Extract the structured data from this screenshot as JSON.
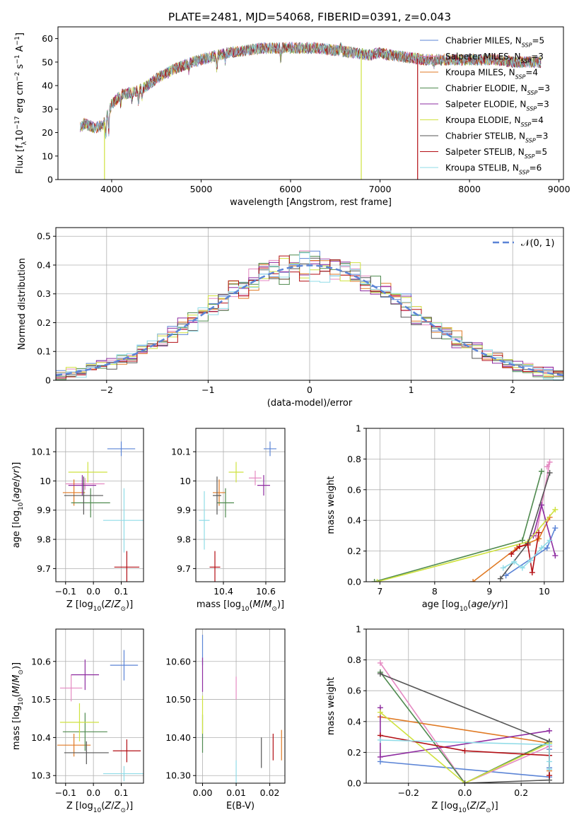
{
  "figure_title": "PLATE=2481, MJD=54068, FIBERID=0391, z=0.043",
  "colors": {
    "Chabrier MILES": "#5b84d6",
    "Salpeter MILES": "#e58ac2",
    "Kroupa MILES": "#e07a24",
    "Chabrier ELODIE": "#4f8a4f",
    "Salpeter ELODIE": "#8e2ca0",
    "Kroupa ELODIE": "#cfe23f",
    "Chabrier STELIB": "#555555",
    "Salpeter STELIB": "#b30e14",
    "Kroupa STELIB": "#8fdbe7"
  },
  "chart_data": [
    {
      "id": "spectrum",
      "type": "line",
      "title": "PLATE=2481, MJD=54068, FIBERID=0391, z=0.043",
      "xlabel": "wavelength [Angstrom, rest frame]",
      "ylabel": "Flux [f_λ10^-17 erg cm^-2 s^-1 A^-1]",
      "xlim": [
        3400,
        9050
      ],
      "ylim": [
        0,
        65
      ],
      "xticks": [
        4000,
        5000,
        6000,
        7000,
        8000,
        9000
      ],
      "yticks": [
        0,
        10,
        20,
        30,
        40,
        50,
        60
      ],
      "grid": false,
      "legend_position": "top-right",
      "legend": [
        {
          "label": "Chabrier MILES, N_SSP=5",
          "key": "Chabrier MILES"
        },
        {
          "label": "Salpeter MILES, N_SSP=3",
          "key": "Salpeter MILES"
        },
        {
          "label": "Kroupa MILES, N_SSP=4",
          "key": "Kroupa MILES"
        },
        {
          "label": "Chabrier ELODIE, N_SSP=3",
          "key": "Chabrier ELODIE"
        },
        {
          "label": "Salpeter ELODIE, N_SSP=3",
          "key": "Salpeter ELODIE"
        },
        {
          "label": "Kroupa ELODIE, N_SSP=4",
          "key": "Kroupa ELODIE"
        },
        {
          "label": "Chabrier STELIB, N_SSP=3",
          "key": "Chabrier STELIB"
        },
        {
          "label": "Salpeter STELIB, N_SSP=5",
          "key": "Salpeter STELIB"
        },
        {
          "label": "Kroupa STELIB, N_SSP=6",
          "key": "Kroupa STELIB"
        }
      ],
      "continuum": {
        "x": [
          3650,
          3700,
          3800,
          3900,
          3950,
          4000,
          4100,
          4200,
          4300,
          4400,
          4500,
          4700,
          4900,
          5100,
          5300,
          5500,
          5700,
          5900,
          6100,
          6300,
          6500,
          6700,
          6900,
          7000,
          7100,
          7300,
          7500,
          7700,
          7900,
          8100,
          8300,
          8500,
          8700,
          8800
        ],
        "y": [
          22,
          24,
          22,
          23,
          27,
          32,
          36,
          37,
          38,
          40,
          43,
          47,
          50,
          52,
          54,
          55,
          56,
          56,
          56,
          56,
          55,
          54,
          53,
          54,
          53,
          52,
          51,
          51,
          51,
          51,
          51,
          50,
          50,
          50
        ]
      },
      "dropouts": [
        {
          "key": "Kroupa ELODIE",
          "x": 3920,
          "y_low": 0
        },
        {
          "key": "Kroupa ELODIE",
          "x": 6790,
          "y_low": 0
        },
        {
          "key": "Salpeter STELIB",
          "x": 7420,
          "y_low": 0
        }
      ]
    },
    {
      "id": "residuals",
      "type": "step",
      "xlabel": "(data-model)/error",
      "ylabel": "Normed distribution",
      "xlim": [
        -2.5,
        2.5
      ],
      "ylim": [
        0,
        0.53
      ],
      "xticks": [
        -2,
        -1,
        0,
        1,
        2
      ],
      "yticks": [
        0.0,
        0.1,
        0.2,
        0.3,
        0.4,
        0.5
      ],
      "grid": true,
      "legend_position": "top-right",
      "reference_label": "𝒩(0, 1)",
      "bin_width": 0.1,
      "series": [
        {
          "key": "Chabrier MILES",
          "offsets": [
            0.01,
            -0.02,
            0.03,
            0.0,
            -0.01,
            0.02
          ]
        },
        {
          "key": "Salpeter MILES",
          "offsets": [
            0.0,
            0.03,
            -0.02,
            0.01,
            0.02,
            -0.01
          ]
        },
        {
          "key": "Kroupa MILES",
          "offsets": [
            -0.02,
            0.01,
            0.0,
            0.03,
            -0.02,
            0.01
          ]
        },
        {
          "key": "Chabrier ELODIE",
          "offsets": [
            0.02,
            0.0,
            -0.03,
            0.02,
            0.01,
            -0.02
          ]
        },
        {
          "key": "Salpeter ELODIE",
          "offsets": [
            -0.01,
            0.02,
            0.01,
            -0.02,
            0.03,
            0.0
          ]
        },
        {
          "key": "Kroupa ELODIE",
          "offsets": [
            0.03,
            -0.01,
            0.02,
            -0.01,
            0.0,
            0.02
          ]
        },
        {
          "key": "Chabrier STELIB",
          "offsets": [
            0.0,
            -0.03,
            0.01,
            0.02,
            -0.01,
            0.03
          ]
        },
        {
          "key": "Salpeter STELIB",
          "offsets": [
            -0.02,
            0.02,
            -0.01,
            0.0,
            0.02,
            -0.02
          ]
        },
        {
          "key": "Kroupa STELIB",
          "offsets": [
            0.01,
            0.0,
            0.02,
            -0.03,
            0.01,
            0.01
          ]
        }
      ]
    },
    {
      "id": "z-vs-age",
      "type": "errorbar",
      "xlabel": "Z [log10(Z/Z⊙)]",
      "ylabel": "age  [log10(age/yr)]",
      "xlim": [
        -0.135,
        0.18
      ],
      "ylim": [
        9.655,
        10.18
      ],
      "xticks": [
        -0.1,
        0.0,
        0.1
      ],
      "yticks": [
        9.7,
        9.8,
        9.9,
        10.0,
        10.1
      ],
      "grid": true,
      "points": [
        {
          "key": "Chabrier MILES",
          "x": 0.1,
          "y": 10.11,
          "xerr": 0.05,
          "yerr": 0.025
        },
        {
          "key": "Salpeter MILES",
          "x": -0.03,
          "y": 9.99,
          "xerr": 0.07,
          "yerr": 0.02
        },
        {
          "key": "Kroupa MILES",
          "x": -0.07,
          "y": 9.96,
          "xerr": 0.04,
          "yerr": 0.045
        },
        {
          "key": "Chabrier ELODIE",
          "x": -0.01,
          "y": 9.925,
          "xerr": 0.07,
          "yerr": 0.05
        },
        {
          "key": "Salpeter ELODIE",
          "x": -0.04,
          "y": 9.985,
          "xerr": 0.05,
          "yerr": 0.035
        },
        {
          "key": "Kroupa ELODIE",
          "x": -0.02,
          "y": 10.03,
          "xerr": 0.07,
          "yerr": 0.035
        },
        {
          "key": "Chabrier STELIB",
          "x": -0.035,
          "y": 9.95,
          "xerr": 0.07,
          "yerr": 0.065
        },
        {
          "key": "Salpeter STELIB",
          "x": 0.12,
          "y": 9.705,
          "xerr": 0.045,
          "yerr": 0.055
        },
        {
          "key": "Kroupa STELIB",
          "x": 0.11,
          "y": 9.865,
          "xerr": 0.075,
          "yerr": 0.11
        }
      ]
    },
    {
      "id": "mass-vs-age",
      "type": "errorbar",
      "xlabel": "mass [log10(M/M⊙)]",
      "ylabel": "",
      "xlim": [
        10.27,
        10.69
      ],
      "ylim": [
        9.655,
        10.18
      ],
      "xticks": [
        10.4,
        10.6
      ],
      "yticks": [
        9.7,
        9.8,
        9.9,
        10.0,
        10.1
      ],
      "grid": true,
      "points": [
        {
          "key": "Chabrier MILES",
          "x": 10.62,
          "y": 10.11,
          "xerr": 0.03,
          "yerr": 0.025
        },
        {
          "key": "Salpeter MILES",
          "x": 10.55,
          "y": 10.01,
          "xerr": 0.03,
          "yerr": 0.025
        },
        {
          "key": "Kroupa MILES",
          "x": 10.38,
          "y": 9.96,
          "xerr": 0.03,
          "yerr": 0.045
        },
        {
          "key": "Chabrier ELODIE",
          "x": 10.41,
          "y": 9.925,
          "xerr": 0.04,
          "yerr": 0.05
        },
        {
          "key": "Salpeter ELODIE",
          "x": 10.59,
          "y": 9.985,
          "xerr": 0.03,
          "yerr": 0.035
        },
        {
          "key": "Kroupa ELODIE",
          "x": 10.46,
          "y": 10.03,
          "xerr": 0.035,
          "yerr": 0.035
        },
        {
          "key": "Chabrier STELIB",
          "x": 10.37,
          "y": 9.95,
          "xerr": 0.02,
          "yerr": 0.065
        },
        {
          "key": "Salpeter STELIB",
          "x": 10.36,
          "y": 9.705,
          "xerr": 0.025,
          "yerr": 0.055
        },
        {
          "key": "Kroupa STELIB",
          "x": 10.31,
          "y": 9.865,
          "xerr": 0.025,
          "yerr": 0.1
        }
      ]
    },
    {
      "id": "age-vs-weight",
      "type": "line",
      "xlabel": "age  [log10(age/yr)]",
      "ylabel": "mass weight",
      "xlim": [
        6.75,
        10.35
      ],
      "ylim": [
        0,
        1.0
      ],
      "xticks": [
        7,
        8,
        9,
        10
      ],
      "yticks": [
        0.0,
        0.2,
        0.4,
        0.6,
        0.8,
        1.0
      ],
      "grid": true,
      "series": [
        {
          "key": "Chabrier MILES",
          "x": [
            9.3,
            10.05,
            10.2
          ],
          "y": [
            0.04,
            0.22,
            0.35
          ]
        },
        {
          "key": "Salpeter MILES",
          "x": [
            9.85,
            10.1,
            10.05
          ],
          "y": [
            0.3,
            0.78,
            0.75
          ]
        },
        {
          "key": "Kroupa MILES",
          "x": [
            8.7,
            9.5,
            9.9,
            10.1
          ],
          "y": [
            0.0,
            0.22,
            0.28,
            0.42
          ]
        },
        {
          "key": "Chabrier ELODIE",
          "x": [
            6.9,
            9.6,
            9.95
          ],
          "y": [
            0.0,
            0.27,
            0.72
          ]
        },
        {
          "key": "Salpeter ELODIE",
          "x": [
            9.8,
            9.95,
            10.2
          ],
          "y": [
            0.3,
            0.5,
            0.17
          ]
        },
        {
          "key": "Kroupa ELODIE",
          "x": [
            6.95,
            9.7,
            10.2
          ],
          "y": [
            0.0,
            0.26,
            0.47
          ]
        },
        {
          "key": "Chabrier STELIB",
          "x": [
            9.2,
            9.7,
            10.1
          ],
          "y": [
            0.02,
            0.25,
            0.71
          ]
        },
        {
          "key": "Salpeter STELIB",
          "x": [
            9.4,
            9.55,
            9.7,
            9.78,
            9.9
          ],
          "y": [
            0.18,
            0.23,
            0.24,
            0.06,
            0.32
          ]
        },
        {
          "key": "Kroupa STELIB",
          "x": [
            9.25,
            9.45,
            9.6,
            9.75,
            9.95,
            10.1
          ],
          "y": [
            0.09,
            0.13,
            0.09,
            0.14,
            0.22,
            0.27
          ]
        }
      ]
    },
    {
      "id": "z-vs-mass",
      "type": "errorbar",
      "xlabel": "Z [log10(Z/Z⊙)]",
      "ylabel": "mass [log10(M/M⊙)]",
      "xlim": [
        -0.135,
        0.18
      ],
      "ylim": [
        10.28,
        10.685
      ],
      "xticks": [
        -0.1,
        0.0,
        0.1
      ],
      "yticks": [
        10.3,
        10.4,
        10.5,
        10.6
      ],
      "grid": true,
      "points": [
        {
          "key": "Chabrier MILES",
          "x": 0.11,
          "y": 10.59,
          "xerr": 0.05,
          "yerr": 0.04
        },
        {
          "key": "Salpeter MILES",
          "x": -0.08,
          "y": 10.53,
          "xerr": 0.04,
          "yerr": 0.035
        },
        {
          "key": "Kroupa MILES",
          "x": -0.07,
          "y": 10.38,
          "xerr": 0.06,
          "yerr": 0.03
        },
        {
          "key": "Chabrier ELODIE",
          "x": -0.03,
          "y": 10.415,
          "xerr": 0.08,
          "yerr": 0.05
        },
        {
          "key": "Salpeter ELODIE",
          "x": -0.03,
          "y": 10.565,
          "xerr": 0.05,
          "yerr": 0.04
        },
        {
          "key": "Kroupa ELODIE",
          "x": -0.05,
          "y": 10.44,
          "xerr": 0.07,
          "yerr": 0.05
        },
        {
          "key": "Chabrier STELIB",
          "x": -0.025,
          "y": 10.36,
          "xerr": 0.08,
          "yerr": 0.03
        },
        {
          "key": "Salpeter STELIB",
          "x": 0.12,
          "y": 10.365,
          "xerr": 0.05,
          "yerr": 0.03
        },
        {
          "key": "Kroupa STELIB",
          "x": 0.11,
          "y": 10.305,
          "xerr": 0.075,
          "yerr": 0.02
        }
      ]
    },
    {
      "id": "ebv-vs-mass",
      "type": "errorbar",
      "xlabel": "E(B-V)",
      "ylabel": "",
      "xlim": [
        -0.002,
        0.0245
      ],
      "ylim": [
        10.28,
        10.685
      ],
      "xticks": [
        0.0,
        0.01,
        0.02
      ],
      "yticks": [
        10.3,
        10.4,
        10.5,
        10.6
      ],
      "grid": true,
      "points": [
        {
          "key": "Chabrier MILES",
          "x": 0.0,
          "y": 10.63,
          "xerr": 0.0,
          "yerr": 0.04
        },
        {
          "key": "Salpeter MILES",
          "x": 0.01,
          "y": 10.53,
          "xerr": 0.0,
          "yerr": 0.03
        },
        {
          "key": "Kroupa MILES",
          "x": 0.0235,
          "y": 10.38,
          "xerr": 0.0,
          "yerr": 0.04
        },
        {
          "key": "Chabrier ELODIE",
          "x": 0.0,
          "y": 10.41,
          "xerr": 0.0,
          "yerr": 0.05
        },
        {
          "key": "Salpeter ELODIE",
          "x": 0.0,
          "y": 10.565,
          "xerr": 0.0,
          "yerr": 0.045
        },
        {
          "key": "Kroupa ELODIE",
          "x": 0.0,
          "y": 10.46,
          "xerr": 0.0,
          "yerr": 0.05
        },
        {
          "key": "Chabrier STELIB",
          "x": 0.0175,
          "y": 10.36,
          "xerr": 0.0,
          "yerr": 0.04
        },
        {
          "key": "Salpeter STELIB",
          "x": 0.021,
          "y": 10.375,
          "xerr": 0.0,
          "yerr": 0.035
        },
        {
          "key": "Kroupa STELIB",
          "x": 0.01,
          "y": 10.305,
          "xerr": 0.0,
          "yerr": 0.035
        }
      ]
    },
    {
      "id": "z-vs-weight",
      "type": "line",
      "xlabel": "Z [log10(Z/Z⊙)]",
      "ylabel": "mass weight",
      "xlim": [
        -0.35,
        0.35
      ],
      "ylim": [
        0,
        1.0
      ],
      "xticks": [
        -0.2,
        0.0,
        0.2
      ],
      "yticks": [
        0.0,
        0.2,
        0.4,
        0.6,
        0.8,
        1.0
      ],
      "grid": true,
      "series": [
        {
          "key": "Chabrier MILES",
          "x": [
            -0.3,
            0.3,
            0.3,
            0.3
          ],
          "y": [
            0.14,
            0.04,
            0.22,
            0.1
          ]
        },
        {
          "key": "Salpeter MILES",
          "x": [
            -0.3,
            0.0,
            0.3
          ],
          "y": [
            0.78,
            0.0,
            0.24
          ]
        },
        {
          "key": "Kroupa MILES",
          "x": [
            -0.3,
            0.3,
            0.3
          ],
          "y": [
            0.43,
            0.26,
            0.08
          ]
        },
        {
          "key": "Chabrier ELODIE",
          "x": [
            -0.3,
            0.0,
            0.3
          ],
          "y": [
            0.72,
            0.0,
            0.27
          ]
        },
        {
          "key": "Salpeter ELODIE",
          "x": [
            -0.3,
            -0.3,
            0.3
          ],
          "y": [
            0.49,
            0.17,
            0.34
          ]
        },
        {
          "key": "Kroupa ELODIE",
          "x": [
            -0.3,
            0.0,
            0.3
          ],
          "y": [
            0.46,
            0.0,
            0.26
          ]
        },
        {
          "key": "Chabrier STELIB",
          "x": [
            -0.3,
            0.3,
            0.3,
            0.0
          ],
          "y": [
            0.71,
            0.27,
            0.02,
            0.0
          ]
        },
        {
          "key": "Salpeter STELIB",
          "x": [
            -0.3,
            0.0,
            0.3,
            0.3
          ],
          "y": [
            0.31,
            0.21,
            0.18,
            0.05
          ]
        },
        {
          "key": "Kroupa STELIB",
          "x": [
            -0.3,
            0.3,
            0.3,
            0.3
          ],
          "y": [
            0.28,
            0.25,
            0.14,
            0.09
          ]
        }
      ]
    }
  ]
}
